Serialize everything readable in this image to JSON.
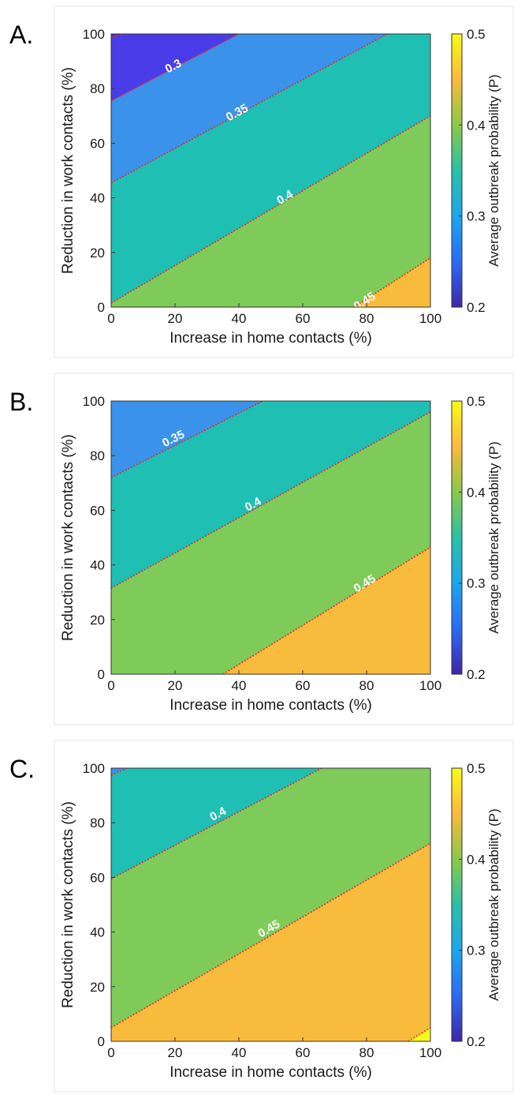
{
  "colors": {
    "band_0_20_0_25": "#3e2fd6",
    "band_0_25_0_30": "#4a3ce8",
    "band_0_30_0_35": "#3a92ea",
    "band_0_35_0_40": "#1fbfb3",
    "band_0_40_0_45": "#7ecb5a",
    "band_0_45_0_50": "#f9bb3b",
    "band_0_50_up": "#f9f81a",
    "contour_line": "#ee2a2a",
    "colorbar_stops": [
      "#3e26a8",
      "#2d6bf3",
      "#1aa7ec",
      "#2bc0a6",
      "#8ac948",
      "#fbb93d",
      "#f9fb14"
    ]
  },
  "chart_data": [
    {
      "type": "heatmap",
      "panel_label": "A.",
      "xlabel": "Increase in home contacts (%)",
      "ylabel": "Reduction in work contacts (%)",
      "colorbar_label": "Average outbreak probability (P)",
      "xlim": [
        0,
        100
      ],
      "ylim": [
        0,
        100
      ],
      "clim": [
        0.2,
        0.5
      ],
      "xticks": [
        "0",
        "20",
        "40",
        "60",
        "80",
        "100"
      ],
      "yticks": [
        "0",
        "20",
        "40",
        "60",
        "80",
        "100"
      ],
      "cticks": [
        "0.2",
        "0.3",
        "0.4",
        "0.5"
      ],
      "background_band": 0.3,
      "contours": [
        {
          "level": 0.25,
          "label": "",
          "line": [
            [
              0,
              99
            ],
            [
              4,
              100
            ]
          ],
          "band_above": 0.25
        },
        {
          "level": 0.3,
          "label": "0.3",
          "line": [
            [
              0,
              75.5
            ],
            [
              40,
              100
            ]
          ],
          "band_above": 0.3,
          "label_at": [
            20,
            87
          ]
        },
        {
          "level": 0.35,
          "label": "0.35",
          "line": [
            [
              0,
              45.5
            ],
            [
              86.5,
              100
            ]
          ],
          "band_above": 0.3,
          "label_at": [
            40,
            70
          ]
        },
        {
          "level": 0.4,
          "label": "0.4",
          "line": [
            [
              0,
              1.5
            ],
            [
              100,
              70
            ]
          ],
          "band_above": 0.35,
          "label_at": [
            55,
            39
          ]
        },
        {
          "level": 0.45,
          "label": "0.45",
          "line": [
            [
              76,
              0
            ],
            [
              100,
              18
            ]
          ],
          "band_above": 0.4,
          "label_at": [
            80,
            1
          ]
        }
      ],
      "fill_bands": [
        0.25,
        0.3,
        0.35,
        0.4,
        0.45
      ],
      "band_colors": [
        "#4a3ce8",
        "#3a92ea",
        "#1fbfb3",
        "#7ecb5a",
        "#f9bb3b"
      ]
    },
    {
      "type": "heatmap",
      "panel_label": "B.",
      "xlabel": "Increase in home contacts (%)",
      "ylabel": "Reduction in work contacts (%)",
      "colorbar_label": "Average outbreak probability (P)",
      "xlim": [
        0,
        100
      ],
      "ylim": [
        0,
        100
      ],
      "clim": [
        0.2,
        0.5
      ],
      "xticks": [
        "0",
        "20",
        "40",
        "60",
        "80",
        "100"
      ],
      "yticks": [
        "0",
        "20",
        "40",
        "60",
        "80",
        "100"
      ],
      "cticks": [
        "0.2",
        "0.3",
        "0.4",
        "0.5"
      ],
      "contours": [
        {
          "level": 0.35,
          "label": "0.35",
          "line": [
            [
              0,
              72
            ],
            [
              47.5,
              100
            ]
          ],
          "label_at": [
            20,
            85
          ]
        },
        {
          "level": 0.4,
          "label": "0.4",
          "line": [
            [
              0,
              31.5
            ],
            [
              100,
              96
            ]
          ],
          "label_at": [
            45,
            61
          ]
        },
        {
          "level": 0.45,
          "label": "0.45",
          "line": [
            [
              35,
              0
            ],
            [
              100,
              46.5
            ]
          ],
          "label_at": [
            80,
            32
          ]
        }
      ],
      "band_colors": [
        "#3a92ea",
        "#1fbfb3",
        "#7ecb5a",
        "#f9bb3b"
      ]
    },
    {
      "type": "heatmap",
      "panel_label": "C.",
      "xlabel": "Increase in home contacts (%)",
      "ylabel": "Reduction in work contacts (%)",
      "colorbar_label": "Average outbreak probability (P)",
      "xlim": [
        0,
        100
      ],
      "ylim": [
        0,
        100
      ],
      "clim": [
        0.2,
        0.5
      ],
      "xticks": [
        "0",
        "20",
        "40",
        "60",
        "80",
        "100"
      ],
      "yticks": [
        "0",
        "20",
        "40",
        "60",
        "80",
        "100"
      ],
      "cticks": [
        "0.2",
        "0.3",
        "0.4",
        "0.5"
      ],
      "contours": [
        {
          "level": 0.35,
          "label": "",
          "line": [
            [
              0,
              97.5
            ],
            [
              5,
              100
            ]
          ]
        },
        {
          "level": 0.4,
          "label": "0.4",
          "line": [
            [
              0,
              59.5
            ],
            [
              66,
              100
            ]
          ],
          "label_at": [
            34,
            82
          ]
        },
        {
          "level": 0.45,
          "label": "0.45",
          "line": [
            [
              0,
              5
            ],
            [
              100,
              72.5
            ]
          ],
          "label_at": [
            50,
            40
          ]
        },
        {
          "level": 0.5,
          "label": "",
          "line": [
            [
              93,
              0
            ],
            [
              100,
              5
            ]
          ]
        }
      ],
      "band_colors": [
        "#3a92ea",
        "#1fbfb3",
        "#7ecb5a",
        "#f9bb3b",
        "#f9f81a"
      ]
    }
  ]
}
